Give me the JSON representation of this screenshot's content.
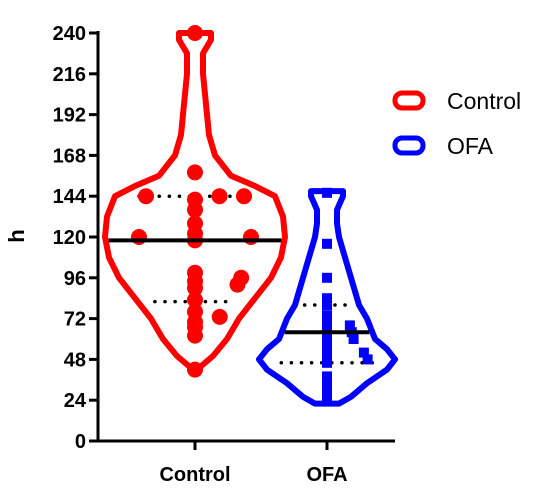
{
  "chart_data": {
    "type": "violin",
    "title": "",
    "xlabel": "",
    "ylabel": "h",
    "ylim": [
      0,
      240
    ],
    "yticks": [
      "0",
      "24",
      "48",
      "72",
      "96",
      "120",
      "144",
      "168",
      "192",
      "216",
      "240"
    ],
    "categories": [
      "Control",
      "OFA"
    ],
    "legend_position": "right",
    "series": [
      {
        "name": "Control",
        "color": "#ff0000",
        "marker": "circle",
        "median": 118,
        "quartiles": [
          82,
          144
        ],
        "profile": [
          [
            42,
            1
          ],
          [
            50,
            9
          ],
          [
            60,
            16
          ],
          [
            72,
            22
          ],
          [
            84,
            30
          ],
          [
            96,
            38
          ],
          [
            108,
            43
          ],
          [
            120,
            45
          ],
          [
            132,
            44
          ],
          [
            144,
            40
          ],
          [
            150,
            30
          ],
          [
            156,
            18
          ],
          [
            168,
            10
          ],
          [
            180,
            7
          ],
          [
            192,
            6
          ],
          [
            204,
            5
          ],
          [
            216,
            4
          ],
          [
            228,
            4
          ],
          [
            236,
            8
          ],
          [
            240,
            8
          ]
        ],
        "points": [
          42,
          62,
          67,
          70,
          73,
          76,
          83,
          90,
          92,
          94,
          96,
          99,
          118,
          120,
          120,
          122,
          128,
          136,
          142,
          144,
          144,
          144,
          158,
          240
        ]
      },
      {
        "name": "OFA",
        "color": "#0000ff",
        "marker": "square",
        "median": 64,
        "quartiles": [
          46,
          80
        ],
        "profile": [
          [
            22,
            6
          ],
          [
            26,
            12
          ],
          [
            34,
            20
          ],
          [
            42,
            30
          ],
          [
            48,
            34
          ],
          [
            54,
            30
          ],
          [
            60,
            24
          ],
          [
            66,
            22
          ],
          [
            72,
            20
          ],
          [
            80,
            16
          ],
          [
            88,
            14
          ],
          [
            96,
            12
          ],
          [
            104,
            10
          ],
          [
            112,
            8
          ],
          [
            120,
            6
          ],
          [
            128,
            5
          ],
          [
            136,
            5
          ],
          [
            144,
            8
          ],
          [
            147,
            8
          ]
        ],
        "points": [
          24,
          28,
          32,
          34,
          38,
          46,
          48,
          50,
          52,
          54,
          58,
          60,
          62,
          64,
          66,
          68,
          70,
          74,
          80,
          84,
          96,
          116,
          146
        ]
      }
    ]
  }
}
